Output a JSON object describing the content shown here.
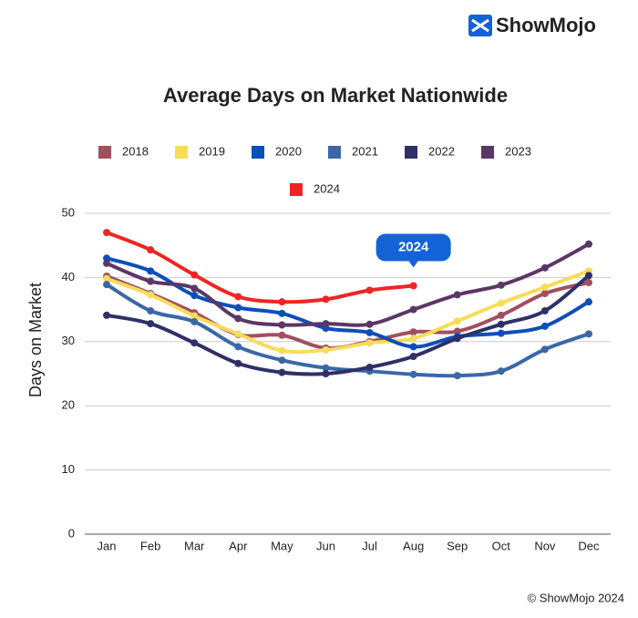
{
  "brand": "ShowMojo",
  "footer": "© ShowMojo 2024",
  "chart_data": {
    "type": "line",
    "title": "Average Days on Market Nationwide",
    "y_label": "Days on Market",
    "annotation": "2024",
    "categories": [
      "Jan",
      "Feb",
      "Mar",
      "Apr",
      "May",
      "Jun",
      "Jul",
      "Aug",
      "Sep",
      "Oct",
      "Nov",
      "Dec"
    ],
    "ylim": [
      0,
      50
    ],
    "yticks": [
      0,
      10,
      20,
      30,
      40,
      50
    ],
    "grid": true,
    "series": [
      {
        "name": "2018",
        "color": "#a0505f",
        "values": [
          40.2,
          37.5,
          34.5,
          31.1,
          31.0,
          29.0,
          30.0,
          31.5,
          31.6,
          34.1,
          37.5,
          39.2
        ]
      },
      {
        "name": "2019",
        "color": "#f7dc5a",
        "values": [
          39.8,
          37.3,
          34.0,
          31.2,
          28.6,
          28.7,
          29.8,
          30.5,
          33.2,
          36.0,
          38.5,
          41.0
        ]
      },
      {
        "name": "2020",
        "color": "#0b4fb8",
        "values": [
          43.0,
          41.0,
          37.2,
          35.3,
          34.4,
          32.1,
          31.4,
          29.2,
          30.8,
          31.3,
          32.4,
          36.2
        ]
      },
      {
        "name": "2021",
        "color": "#3a68a6",
        "values": [
          38.9,
          34.8,
          33.1,
          29.2,
          27.1,
          25.9,
          25.4,
          24.9,
          24.7,
          25.4,
          28.8,
          31.2
        ]
      },
      {
        "name": "2022",
        "color": "#2f3066",
        "values": [
          34.1,
          32.8,
          29.8,
          26.6,
          25.2,
          25.0,
          26.0,
          27.7,
          30.5,
          32.7,
          34.8,
          40.3
        ]
      },
      {
        "name": "2023",
        "color": "#5c3667",
        "values": [
          42.2,
          39.4,
          38.3,
          33.6,
          32.6,
          32.8,
          32.7,
          35.0,
          37.3,
          38.8,
          41.5,
          45.2
        ]
      },
      {
        "name": "2024",
        "color": "#f02424",
        "values": [
          47.0,
          44.3,
          40.4,
          37.0,
          36.2,
          36.6,
          38.0,
          38.7,
          null,
          null,
          null,
          null
        ]
      }
    ]
  }
}
